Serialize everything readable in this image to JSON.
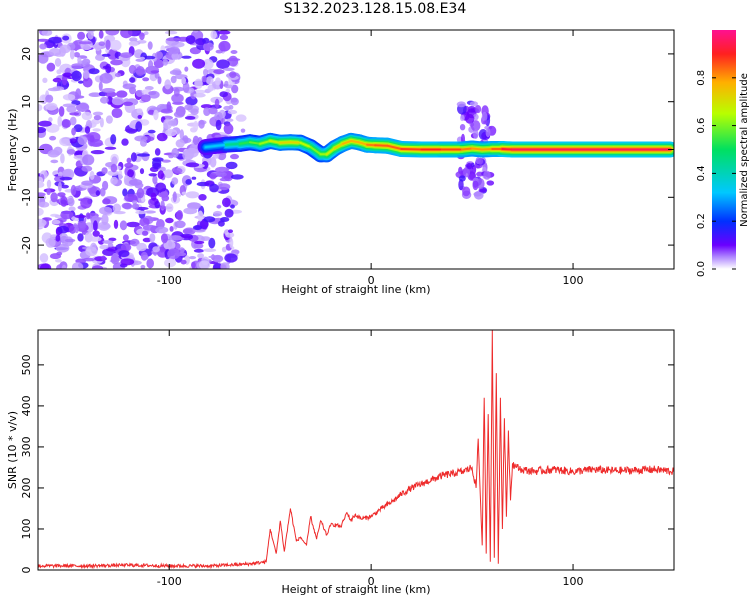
{
  "title": "S132.2023.128.15.08.E34",
  "colors": {
    "frame": "#000000",
    "snr_line": "#ee2b2b",
    "colorbar_stops": [
      "#ffffff",
      "#a070ff",
      "#6a00ff",
      "#0030ff",
      "#00c8ff",
      "#00e060",
      "#d0ff00",
      "#ffb000",
      "#ff2020",
      "#ff1090"
    ]
  },
  "chart_data": [
    {
      "type": "heatmap",
      "xlabel": "Height of straight line (km)",
      "ylabel": "Frequency (Hz)",
      "xlim": [
        -165,
        150
      ],
      "ylim": [
        -25,
        25
      ],
      "xticks": [
        -100,
        0,
        100
      ],
      "yticks": [
        -20,
        -10,
        0,
        10,
        20
      ],
      "grid": false,
      "colorbar": {
        "label": "Normalized spectral amplitude",
        "range": [
          0.0,
          1.0
        ],
        "ticks": [
          0.0,
          0.2,
          0.4,
          0.6,
          0.8
        ],
        "tick_labels": [
          "0.0",
          "0.2",
          "0.4",
          "0.6",
          "0.8"
        ]
      },
      "noise_region_x": [
        -165,
        -67
      ],
      "ridge": {
        "x": [
          -82,
          -72,
          -65,
          -60,
          -55,
          -50,
          -45,
          -40,
          -35,
          -30,
          -25,
          -22,
          -18,
          -14,
          -10,
          -6,
          -2,
          2,
          8,
          15,
          25,
          35,
          45,
          50,
          55,
          60,
          65,
          70,
          80,
          100,
          120,
          148
        ],
        "freq": [
          0.5,
          1.0,
          1.2,
          1.5,
          1.2,
          1.8,
          1.4,
          1.5,
          1.4,
          0.5,
          -1.0,
          -1.0,
          0.3,
          1.2,
          1.8,
          1.5,
          1.0,
          0.9,
          0.8,
          0.1,
          0.0,
          0.0,
          0.0,
          0.2,
          0.0,
          0.1,
          0.1,
          0.0,
          0.0,
          0.0,
          0.0,
          0.0
        ],
        "amplitude": [
          0.25,
          0.4,
          0.5,
          0.55,
          0.6,
          0.65,
          0.7,
          0.75,
          0.7,
          0.6,
          0.6,
          0.65,
          0.7,
          0.75,
          0.8,
          0.75,
          0.8,
          0.85,
          0.85,
          0.85,
          0.9,
          0.9,
          0.85,
          0.8,
          0.8,
          0.8,
          0.9,
          0.95,
          0.95,
          0.95,
          0.95,
          0.95
        ]
      },
      "spread_region": {
        "x": [
          44,
          60
        ],
        "freq": [
          -10,
          10
        ]
      }
    },
    {
      "type": "line",
      "xlabel": "Height of straight line (km)",
      "ylabel": "SNR (10 * v/v)",
      "xlim": [
        -165,
        150
      ],
      "ylim": [
        0,
        585
      ],
      "xticks": [
        -100,
        0,
        100
      ],
      "yticks": [
        0,
        100,
        200,
        300,
        400,
        500
      ],
      "grid": false,
      "series": [
        {
          "x": [
            -165,
            -140,
            -120,
            -100,
            -80,
            -70,
            -60,
            -52,
            -50,
            -47,
            -45,
            -43,
            -40,
            -37,
            -35,
            -32,
            -30,
            -27,
            -25,
            -22,
            -20,
            -17,
            -15,
            -12,
            -10,
            -8,
            -5,
            0,
            5,
            10,
            15,
            20,
            25,
            30,
            35,
            40,
            45,
            48,
            50,
            52,
            53,
            55,
            56,
            57,
            58,
            59,
            60,
            61,
            62,
            63,
            64,
            65,
            66,
            67,
            68,
            69,
            70,
            72,
            75,
            80,
            90,
            100,
            110,
            120,
            130,
            140,
            150
          ],
          "y": [
            10,
            10,
            12,
            10,
            10,
            12,
            15,
            20,
            100,
            40,
            120,
            45,
            150,
            70,
            80,
            60,
            130,
            75,
            120,
            85,
            110,
            110,
            105,
            140,
            120,
            135,
            125,
            130,
            150,
            165,
            185,
            200,
            210,
            220,
            230,
            235,
            240,
            245,
            250,
            200,
            320,
            60,
            420,
            40,
            380,
            20,
            585,
            30,
            480,
            15,
            420,
            100,
            370,
            130,
            340,
            170,
            260,
            250,
            245,
            240,
            245,
            240,
            245,
            242,
            243,
            245,
            240
          ]
        }
      ]
    }
  ]
}
